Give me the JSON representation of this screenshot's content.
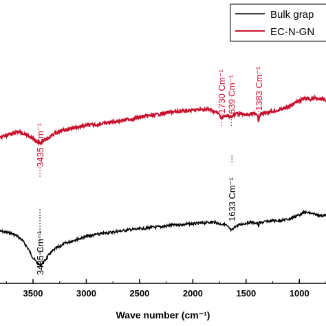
{
  "chart_data": {
    "type": "line",
    "xlabel": "Wave number (cm⁻¹)",
    "x_reversed": true,
    "xlim": [
      4000,
      750
    ],
    "x_ticks": [
      3500,
      3000,
      2500,
      2000,
      1500,
      1000
    ],
    "grid": false,
    "legend_placement": "top-right",
    "colors": {
      "bulk": "#000000",
      "ecngn": "#c8102e"
    },
    "series": [
      {
        "name": "Bulk grap",
        "color": "#000000",
        "x": [
          4000,
          3900,
          3800,
          3700,
          3650,
          3600,
          3550,
          3500,
          3460,
          3435,
          3400,
          3350,
          3300,
          3200,
          3100,
          3000,
          2900,
          2800,
          2700,
          2600,
          2500,
          2400,
          2300,
          2200,
          2100,
          2000,
          1900,
          1850,
          1800,
          1750,
          1700,
          1680,
          1660,
          1645,
          1633,
          1620,
          1600,
          1550,
          1500,
          1450,
          1420,
          1400,
          1390,
          1383,
          1375,
          1350,
          1300,
          1250,
          1200,
          1150,
          1100,
          1050,
          1000,
          950,
          900,
          850,
          800,
          750
        ],
        "y": [
          0.3,
          0.31,
          0.33,
          0.36,
          0.39,
          0.45,
          0.55,
          0.68,
          0.75,
          0.78,
          0.74,
          0.64,
          0.57,
          0.49,
          0.44,
          0.4,
          0.37,
          0.35,
          0.33,
          0.31,
          0.3,
          0.28,
          0.27,
          0.25,
          0.24,
          0.23,
          0.22,
          0.21,
          0.21,
          0.23,
          0.24,
          0.26,
          0.29,
          0.31,
          0.32,
          0.3,
          0.26,
          0.24,
          0.22,
          0.21,
          0.22,
          0.22,
          0.23,
          0.27,
          0.22,
          0.21,
          0.2,
          0.19,
          0.19,
          0.18,
          0.17,
          0.14,
          0.11,
          0.08,
          0.09,
          0.11,
          0.12,
          0.12
        ]
      },
      {
        "name": "EC-N-GN",
        "color": "#c8102e",
        "x": [
          4000,
          3900,
          3800,
          3750,
          3700,
          3650,
          3600,
          3550,
          3500,
          3460,
          3435,
          3400,
          3350,
          3300,
          3200,
          3100,
          3000,
          2900,
          2800,
          2700,
          2600,
          2500,
          2400,
          2300,
          2200,
          2100,
          2000,
          1900,
          1850,
          1800,
          1760,
          1740,
          1730,
          1700,
          1660,
          1639,
          1620,
          1600,
          1550,
          1500,
          1450,
          1420,
          1400,
          1390,
          1383,
          1375,
          1350,
          1300,
          1250,
          1200,
          1150,
          1100,
          1050,
          1000,
          950,
          900,
          850,
          800,
          750
        ],
        "y": [
          0.21,
          0.2,
          0.19,
          0.18,
          0.17,
          0.16,
          0.165,
          0.18,
          0.2,
          0.215,
          0.22,
          0.21,
          0.19,
          0.17,
          0.15,
          0.135,
          0.125,
          0.12,
          0.11,
          0.1,
          0.09,
          0.08,
          0.07,
          0.06,
          0.05,
          0.045,
          0.04,
          0.035,
          0.035,
          0.045,
          0.06,
          0.075,
          0.08,
          0.075,
          0.07,
          0.075,
          0.07,
          0.06,
          0.06,
          0.065,
          0.06,
          0.06,
          0.065,
          0.08,
          0.11,
          0.07,
          0.06,
          0.05,
          0.045,
          0.04,
          0.03,
          0.02,
          0.0,
          -0.01,
          -0.03,
          -0.02,
          -0.03,
          -0.025,
          -0.02
        ]
      }
    ],
    "annotations": [
      {
        "text": "3435 Cm⁻¹",
        "series": "EC-N-GN",
        "x": 3435
      },
      {
        "text": "1730 Cm⁻¹",
        "series": "EC-N-GN",
        "x": 1730
      },
      {
        "text": "1639 Cm⁻¹",
        "series": "EC-N-GN",
        "x": 1639
      },
      {
        "text": "1383 Cm⁻¹",
        "series": "EC-N-GN",
        "x": 1383
      },
      {
        "text": "1633 Cm⁻¹",
        "series": "Bulk grap",
        "x": 1633
      },
      {
        "text": "3435 Cm⁻¹",
        "series": "Bulk grap",
        "x": 3435
      }
    ]
  }
}
